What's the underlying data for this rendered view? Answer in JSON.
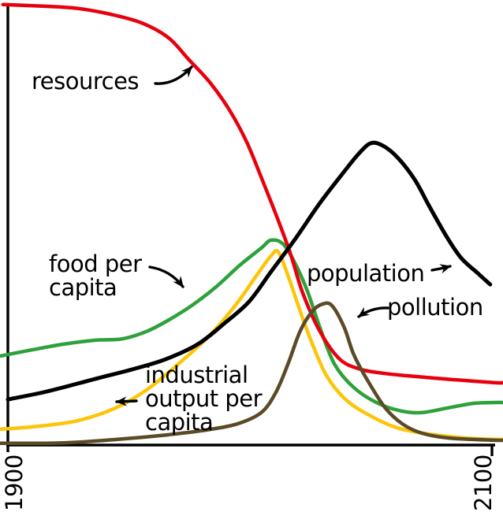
{
  "figure": {
    "background_color": "#ffffff",
    "axis_color": "#000000",
    "text_color": "#000000"
  },
  "labels": {
    "resources": "resources",
    "food_line1": "food per",
    "food_line2": "capita",
    "population": "population",
    "pollution": "pollution",
    "industrial_line1": "industrial",
    "industrial_line2": "output per",
    "industrial_line3": "capita"
  },
  "x_axis": {
    "tick_left": "1900",
    "tick_right": "2100"
  },
  "chart_data": {
    "type": "line",
    "title": "",
    "xlabel": "",
    "ylabel": "",
    "x_range": [
      1900,
      2100
    ],
    "y_range": [
      0,
      1
    ],
    "x_tick_labels": [
      "1900",
      "2100"
    ],
    "grid": false,
    "legend": "inline-annotations-with-arrows",
    "series": [
      {
        "name": "food per capita",
        "color": "#2da13a",
        "stroke_width": 4.5,
        "extends_right": true,
        "points": [
          [
            1897,
            0.203
          ],
          [
            1910,
            0.217
          ],
          [
            1923,
            0.23
          ],
          [
            1936,
            0.239
          ],
          [
            1947,
            0.242
          ],
          [
            1957,
            0.259
          ],
          [
            1966,
            0.285
          ],
          [
            1976,
            0.32
          ],
          [
            1986,
            0.363
          ],
          [
            1995,
            0.409
          ],
          [
            2004,
            0.449
          ],
          [
            2008,
            0.467
          ],
          [
            2013,
            0.458
          ],
          [
            2018,
            0.413
          ],
          [
            2023,
            0.35
          ],
          [
            2028,
            0.269
          ],
          [
            2034,
            0.185
          ],
          [
            2042,
            0.131
          ],
          [
            2052,
            0.095
          ],
          [
            2062,
            0.077
          ],
          [
            2070,
            0.074
          ],
          [
            2080,
            0.084
          ],
          [
            2091,
            0.095
          ],
          [
            2100,
            0.097
          ]
        ]
      },
      {
        "name": "industrial output per capita",
        "color": "#fcc508",
        "stroke_width": 4.5,
        "extends_right": true,
        "points": [
          [
            1897,
            0.036
          ],
          [
            1913,
            0.043
          ],
          [
            1929,
            0.056
          ],
          [
            1944,
            0.084
          ],
          [
            1957,
            0.126
          ],
          [
            1970,
            0.185
          ],
          [
            1983,
            0.251
          ],
          [
            1994,
            0.323
          ],
          [
            2002,
            0.386
          ],
          [
            2008,
            0.431
          ],
          [
            2011,
            0.44
          ],
          [
            2015,
            0.386
          ],
          [
            2020,
            0.305
          ],
          [
            2025,
            0.23
          ],
          [
            2031,
            0.156
          ],
          [
            2039,
            0.102
          ],
          [
            2049,
            0.066
          ],
          [
            2060,
            0.039
          ],
          [
            2073,
            0.025
          ],
          [
            2088,
            0.016
          ],
          [
            2100,
            0.013
          ]
        ]
      },
      {
        "name": "resources",
        "color": "#e8000d",
        "stroke_width": 4.5,
        "extends_right": true,
        "points": [
          [
            1898,
            1.004
          ],
          [
            1916,
            1.0
          ],
          [
            1929,
            0.995
          ],
          [
            1942,
            0.982
          ],
          [
            1955,
            0.962
          ],
          [
            1966,
            0.928
          ],
          [
            1974,
            0.88
          ],
          [
            1983,
            0.826
          ],
          [
            1991,
            0.763
          ],
          [
            1998,
            0.691
          ],
          [
            2004,
            0.61
          ],
          [
            2010,
            0.526
          ],
          [
            2016,
            0.436
          ],
          [
            2021,
            0.347
          ],
          [
            2028,
            0.26
          ],
          [
            2036,
            0.197
          ],
          [
            2044,
            0.174
          ],
          [
            2055,
            0.163
          ],
          [
            2072,
            0.154
          ],
          [
            2088,
            0.147
          ],
          [
            2100,
            0.142
          ]
        ]
      },
      {
        "name": "population",
        "color": "#000000",
        "stroke_width": 5,
        "extends_right": false,
        "points": [
          [
            1900,
            0.104
          ],
          [
            1916,
            0.122
          ],
          [
            1936,
            0.151
          ],
          [
            1952,
            0.174
          ],
          [
            1965,
            0.196
          ],
          [
            1978,
            0.23
          ],
          [
            1989,
            0.278
          ],
          [
            1999,
            0.327
          ],
          [
            2008,
            0.395
          ],
          [
            2018,
            0.47
          ],
          [
            2028,
            0.551
          ],
          [
            2038,
            0.623
          ],
          [
            2044,
            0.664
          ],
          [
            2049,
            0.688
          ],
          [
            2054,
            0.682
          ],
          [
            2060,
            0.655
          ],
          [
            2067,
            0.605
          ],
          [
            2073,
            0.544
          ],
          [
            2080,
            0.476
          ],
          [
            2086,
            0.427
          ],
          [
            2093,
            0.391
          ],
          [
            2098,
            0.366
          ]
        ]
      },
      {
        "name": "pollution",
        "color": "#5a4a26",
        "stroke_width": 4.5,
        "extends_right": true,
        "points": [
          [
            1897,
            0.004
          ],
          [
            1923,
            0.005
          ],
          [
            1945,
            0.013
          ],
          [
            1965,
            0.023
          ],
          [
            1981,
            0.034
          ],
          [
            1994,
            0.048
          ],
          [
            2004,
            0.074
          ],
          [
            2010,
            0.12
          ],
          [
            2015,
            0.185
          ],
          [
            2020,
            0.26
          ],
          [
            2025,
            0.305
          ],
          [
            2029,
            0.321
          ],
          [
            2033,
            0.318
          ],
          [
            2038,
            0.269
          ],
          [
            2042,
            0.206
          ],
          [
            2048,
            0.144
          ],
          [
            2055,
            0.084
          ],
          [
            2062,
            0.048
          ],
          [
            2070,
            0.027
          ],
          [
            2081,
            0.016
          ],
          [
            2100,
            0.011
          ]
        ]
      }
    ]
  }
}
